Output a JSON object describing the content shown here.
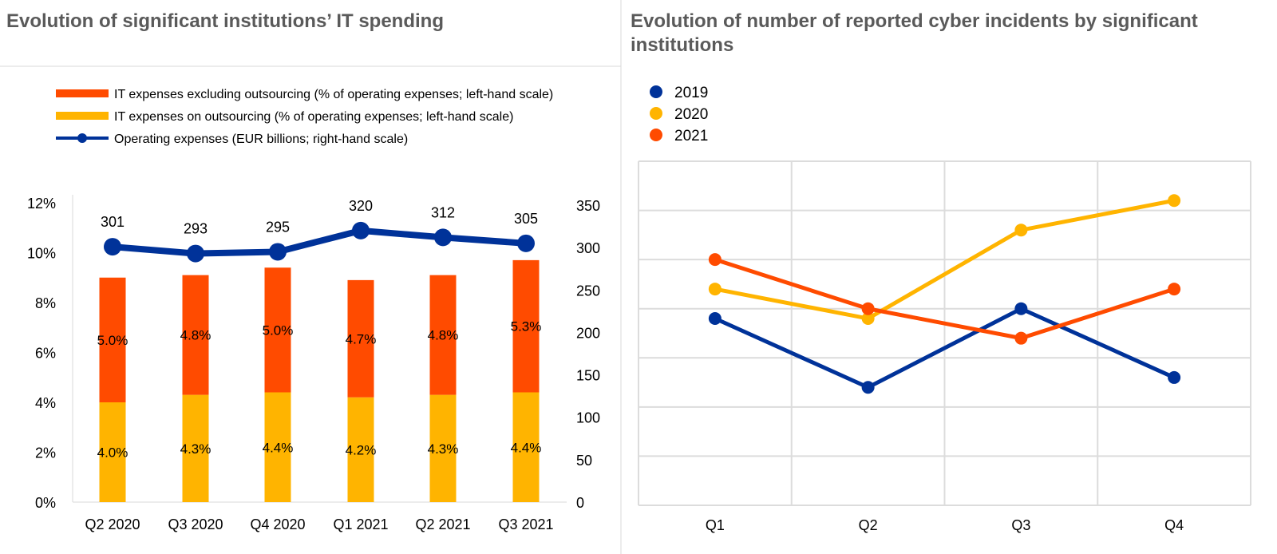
{
  "chart_data": [
    {
      "type": "bar",
      "title": "Evolution of significant institutions’ IT spending",
      "categories": [
        "Q2 2020",
        "Q3 2020",
        "Q4 2020",
        "Q1 2021",
        "Q2 2021",
        "Q3 2021"
      ],
      "stacked": true,
      "series": [
        {
          "name": "IT expenses on outsourcing (% of operating expenses; left-hand scale)",
          "type": "bar",
          "axis": "left",
          "color": "#FFB400",
          "values": [
            4.0,
            4.3,
            4.4,
            4.2,
            4.3,
            4.4
          ],
          "labels": [
            "4.0%",
            "4.3%",
            "4.4%",
            "4.2%",
            "4.3%",
            "4.4%"
          ]
        },
        {
          "name": "IT expenses excluding outsourcing (% of operating expenses; left-hand scale)",
          "type": "bar",
          "axis": "left",
          "color": "#FF4B00",
          "values": [
            5.0,
            4.8,
            5.0,
            4.7,
            4.8,
            5.3
          ],
          "labels": [
            "5.0%",
            "4.8%",
            "5.0%",
            "4.7%",
            "4.8%",
            "5.3%"
          ]
        },
        {
          "name": "Operating expenses (EUR billions; right-hand scale)",
          "type": "line",
          "axis": "right",
          "color": "#003299",
          "values": [
            301,
            293,
            295,
            320,
            312,
            305
          ],
          "labels": [
            "301",
            "293",
            "295",
            "320",
            "312",
            "305"
          ]
        }
      ],
      "legend_order": [
        1,
        0,
        2
      ],
      "left_axis": {
        "ylim": [
          0,
          12
        ],
        "ticks": [
          "0%",
          "2%",
          "4%",
          "6%",
          "8%",
          "10%",
          "12%"
        ]
      },
      "right_axis": {
        "ylim": [
          0,
          350
        ],
        "ticks": [
          "0",
          "50",
          "100",
          "150",
          "200",
          "250",
          "300",
          "350"
        ]
      },
      "legend": "top-left",
      "grid": false
    },
    {
      "type": "line",
      "title": "Evolution of number of reported cyber incidents by significant institutions",
      "categories": [
        "Q1",
        "Q2",
        "Q3",
        "Q4"
      ],
      "series": [
        {
          "name": "2019",
          "color": "#003299",
          "values": [
            3.8,
            2.4,
            4.0,
            2.6
          ]
        },
        {
          "name": "2020",
          "color": "#FFB400",
          "values": [
            4.4,
            3.8,
            5.6,
            6.2
          ]
        },
        {
          "name": "2021",
          "color": "#FF4B00",
          "values": [
            5.0,
            4.0,
            3.4,
            4.4
          ]
        }
      ],
      "ylim": [
        0,
        7
      ],
      "y_tick_labels": "none",
      "legend": "top-left",
      "grid": true
    }
  ]
}
